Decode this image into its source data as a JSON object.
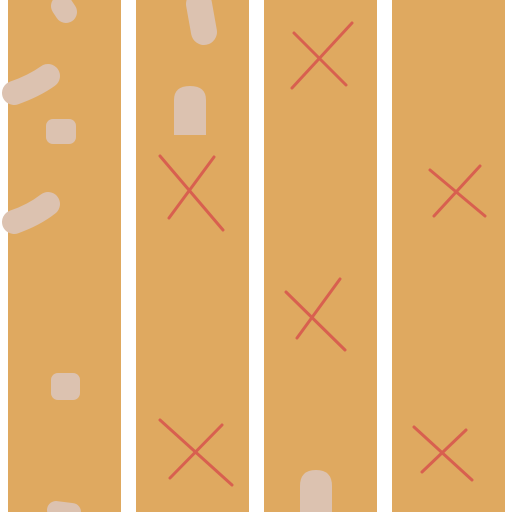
{
  "board": {
    "lane_color": "#dfa960",
    "gap_color": "#ffffff",
    "blob_color": "#dcc2b0",
    "x_mark_color": "#d8604f",
    "lanes": [
      "lane-1",
      "lane-2",
      "lane-3",
      "lane-4"
    ]
  }
}
